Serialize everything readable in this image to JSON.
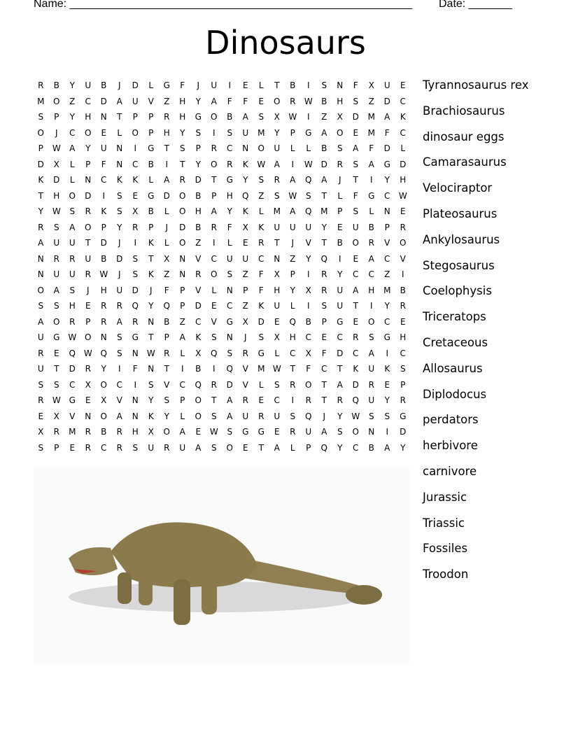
{
  "header": {
    "name_label": "Name: _______________________________________________________",
    "date_label": "Date: _______"
  },
  "title": "Dinosaurs",
  "grid": [
    "RBYUBJDLGFJUIELTBISNFXUE",
    "MOZCDAUVZHYAFFEORWBHSZDC",
    "SPYHNTPPRHGOBASXWIZXDMAK",
    "OJCOELOPHYSISUMYPGAOEMFC",
    "PWAYUNIGTSPRCNOULLBSAFDL",
    "DXLPFNCBITYORKWAIWDRSAGD",
    "KDLNCKKLARDTGYSRAQAJTIYH",
    "THODISEGDOBPHQZSWSTLFGCW",
    "YWSRKSXBLOHAYKLMAQMPSLNE",
    "RSAOPYRPJDBRFXKUUUYEUBPR",
    "AUUTDJIKLOZILERTJVTBORVO",
    "NRRUBDSTXNVCUUCNZYQIEACV",
    "NUURWJSKZNROSZFXPIRYCCZI",
    "OASJHUDJFPVLNPFHYXRUAHMB",
    "SSHERRQYQPDECZKULISUTIYR",
    "AORPRARNBZCVGXDEQBPGEOCE",
    "UGWONSGTPAKSNJSXHCECRSGH",
    "REQWQSNWRLXQSRGLCXFDCAIC",
    "UTDRYIFNTIBIQVMWTFCTKUKS",
    "SSCXOCISVCQRDVLSROTADREP",
    "RWGEXVNYSPOTARECIRTRQUYR",
    "EXVNOANKYLOSAURUSQJYWSSG",
    "XRMRBRHXOAEWSGGERUASONID",
    "SPERCRSURUASOETALPQYCBAY"
  ],
  "words": [
    "Tyrannosaurus rex",
    "Brachiosaurus",
    "dinosaur eggs",
    "Camarasaurus",
    "Velociraptor",
    "Plateosaurus",
    "Ankylosaurus",
    "Stegosaurus",
    "Coelophysis",
    "Triceratops",
    "Cretaceous",
    "Allosaurus",
    "Diplodocus",
    "perdators",
    "herbivore",
    "carnivore",
    "Jurassic",
    "Triassic",
    "Fossiles",
    "Troodon"
  ],
  "illustration": {
    "subject": "ankylosaurus-image",
    "body_color": "#8a7a4c"
  }
}
